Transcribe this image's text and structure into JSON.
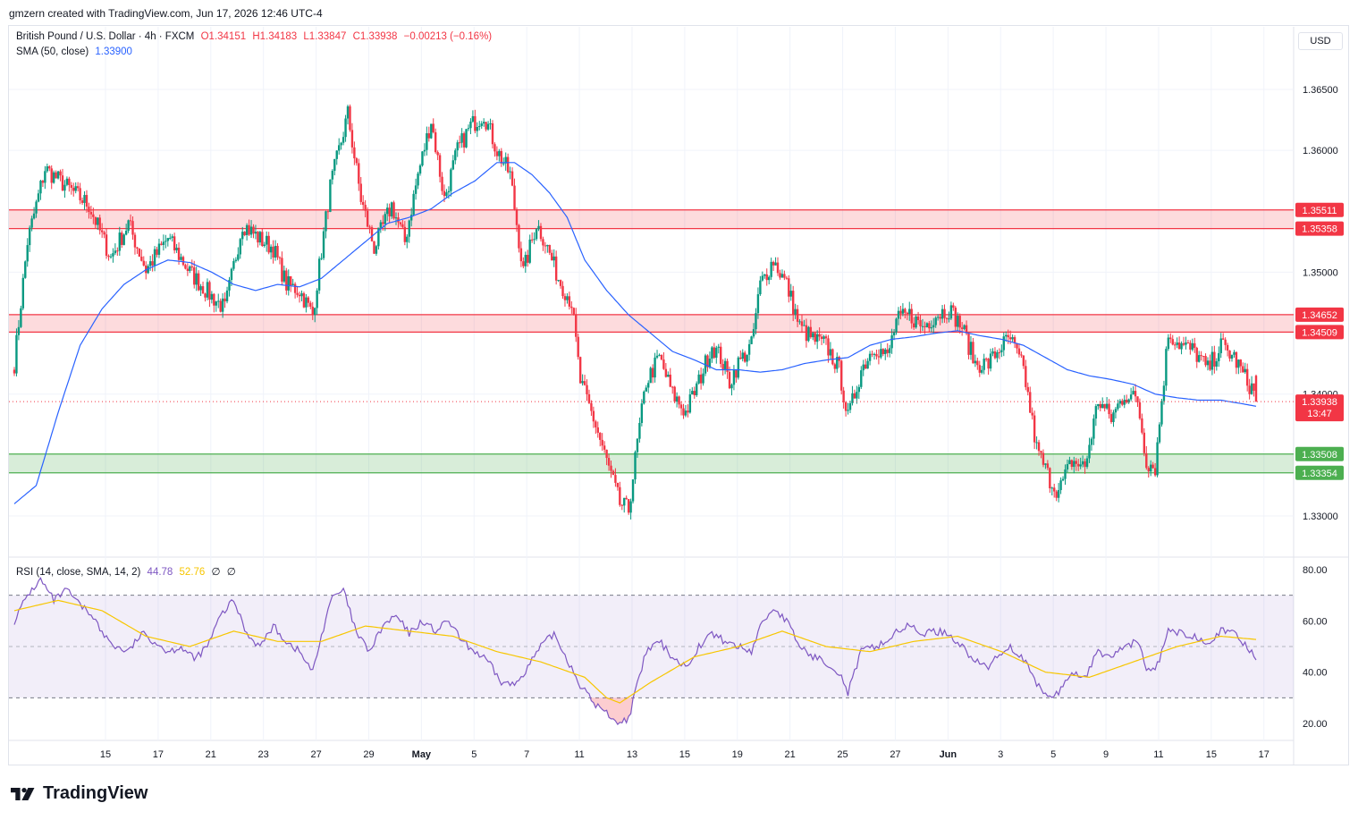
{
  "header": {
    "credit": "gmzern created with TradingView.com, Jun 17, 2026 12:46 UTC-4"
  },
  "legend": {
    "symbol": "British Pound / U.S. Dollar · 4h · FXCM",
    "open": "O1.34151",
    "high": "H1.34183",
    "low": "L1.33847",
    "close": "C1.33938",
    "change": "−0.00213 (−0.16%)",
    "sma_label": "SMA (50, close)",
    "sma_value": "1.33900",
    "rsi_label": "RSI (14, close, SMA, 14, 2)",
    "rsi_value": "44.78",
    "rsi_sma_value": "52.76",
    "rsi_extra1": "∅",
    "rsi_extra2": "∅"
  },
  "currency": "USD",
  "brand": "TradingView",
  "colors": {
    "up": "#089981",
    "down": "#f23645",
    "sma": "#2962ff",
    "rsi": "#7e57c2",
    "rsi_sma": "#f7c600",
    "resistance": "#f23645",
    "support": "#4caf50"
  },
  "chart_data": [
    {
      "type": "candlestick",
      "title": "British Pound / U.S. Dollar · 4h · FXCM",
      "ylim": [
        1.327,
        1.37
      ],
      "y_ticks": [
        "1.36500",
        "1.36000",
        "1.35000",
        "1.34000",
        "1.33000"
      ],
      "x_ticks": [
        "15",
        "17",
        "21",
        "23",
        "27",
        "29",
        "May",
        "5",
        "7",
        "11",
        "13",
        "15",
        "19",
        "21",
        "25",
        "27",
        "Jun",
        "3",
        "5",
        "9",
        "11",
        "15",
        "17"
      ],
      "path": [
        [
          0,
          1.3425
        ],
        [
          6,
          1.3525
        ],
        [
          14,
          1.3585
        ],
        [
          24,
          1.357
        ],
        [
          34,
          1.3555
        ],
        [
          44,
          1.3512
        ],
        [
          52,
          1.354
        ],
        [
          60,
          1.3502
        ],
        [
          70,
          1.3528
        ],
        [
          80,
          1.35
        ],
        [
          90,
          1.348
        ],
        [
          96,
          1.347
        ],
        [
          104,
          1.354
        ],
        [
          112,
          1.3527
        ],
        [
          118,
          1.352
        ],
        [
          124,
          1.349
        ],
        [
          130,
          1.3485
        ],
        [
          136,
          1.3465
        ],
        [
          144,
          1.357
        ],
        [
          152,
          1.363
        ],
        [
          158,
          1.356
        ],
        [
          164,
          1.352
        ],
        [
          172,
          1.3555
        ],
        [
          178,
          1.3525
        ],
        [
          184,
          1.358
        ],
        [
          190,
          1.3625
        ],
        [
          196,
          1.356
        ],
        [
          202,
          1.36
        ],
        [
          208,
          1.362
        ],
        [
          214,
          1.363
        ],
        [
          220,
          1.36
        ],
        [
          226,
          1.358
        ],
        [
          232,
          1.35
        ],
        [
          238,
          1.354
        ],
        [
          242,
          1.3525
        ],
        [
          248,
          1.3495
        ],
        [
          254,
          1.3475
        ],
        [
          258,
          1.341
        ],
        [
          264,
          1.338
        ],
        [
          270,
          1.3345
        ],
        [
          276,
          1.331
        ],
        [
          280,
          1.3305
        ],
        [
          284,
          1.336
        ],
        [
          288,
          1.341
        ],
        [
          294,
          1.343
        ],
        [
          300,
          1.34
        ],
        [
          306,
          1.3385
        ],
        [
          312,
          1.341
        ],
        [
          318,
          1.344
        ],
        [
          322,
          1.343
        ],
        [
          326,
          1.341
        ],
        [
          330,
          1.3425
        ],
        [
          336,
          1.344
        ],
        [
          340,
          1.349
        ],
        [
          346,
          1.351
        ],
        [
          352,
          1.349
        ],
        [
          358,
          1.3455
        ],
        [
          364,
          1.3445
        ],
        [
          370,
          1.344
        ],
        [
          376,
          1.342
        ],
        [
          380,
          1.338
        ],
        [
          386,
          1.342
        ],
        [
          392,
          1.344
        ],
        [
          398,
          1.343
        ],
        [
          402,
          1.346
        ],
        [
          408,
          1.3465
        ],
        [
          414,
          1.3455
        ],
        [
          420,
          1.3465
        ],
        [
          426,
          1.347
        ],
        [
          432,
          1.3455
        ],
        [
          438,
          1.3425
        ],
        [
          444,
          1.3425
        ],
        [
          450,
          1.344
        ],
        [
          454,
          1.3445
        ],
        [
          460,
          1.342
        ],
        [
          466,
          1.3355
        ],
        [
          472,
          1.333
        ],
        [
          476,
          1.332
        ],
        [
          482,
          1.3345
        ],
        [
          488,
          1.334
        ],
        [
          494,
          1.3395
        ],
        [
          500,
          1.338
        ],
        [
          506,
          1.34
        ],
        [
          512,
          1.3395
        ],
        [
          516,
          1.3345
        ],
        [
          520,
          1.334
        ],
        [
          526,
          1.345
        ],
        [
          532,
          1.344
        ],
        [
          538,
          1.3435
        ],
        [
          544,
          1.342
        ],
        [
          550,
          1.344
        ],
        [
          556,
          1.343
        ],
        [
          562,
          1.341
        ],
        [
          566,
          1.34
        ]
      ],
      "sma": [
        [
          0,
          1.331
        ],
        [
          10,
          1.3325
        ],
        [
          20,
          1.3385
        ],
        [
          30,
          1.344
        ],
        [
          40,
          1.347
        ],
        [
          50,
          1.349
        ],
        [
          60,
          1.3502
        ],
        [
          70,
          1.351
        ],
        [
          80,
          1.3508
        ],
        [
          90,
          1.35
        ],
        [
          100,
          1.349
        ],
        [
          110,
          1.3485
        ],
        [
          120,
          1.349
        ],
        [
          130,
          1.3488
        ],
        [
          140,
          1.3495
        ],
        [
          150,
          1.351
        ],
        [
          160,
          1.3525
        ],
        [
          170,
          1.354
        ],
        [
          180,
          1.3545
        ],
        [
          190,
          1.3552
        ],
        [
          200,
          1.3565
        ],
        [
          210,
          1.3575
        ],
        [
          220,
          1.359
        ],
        [
          228,
          1.359
        ],
        [
          236,
          1.358
        ],
        [
          244,
          1.3565
        ],
        [
          252,
          1.3545
        ],
        [
          260,
          1.351
        ],
        [
          270,
          1.3485
        ],
        [
          280,
          1.3465
        ],
        [
          290,
          1.345
        ],
        [
          300,
          1.3435
        ],
        [
          310,
          1.3428
        ],
        [
          320,
          1.342
        ],
        [
          330,
          1.342
        ],
        [
          340,
          1.3418
        ],
        [
          350,
          1.342
        ],
        [
          360,
          1.3425
        ],
        [
          370,
          1.3428
        ],
        [
          380,
          1.343
        ],
        [
          390,
          1.344
        ],
        [
          400,
          1.3445
        ],
        [
          410,
          1.3447
        ],
        [
          420,
          1.345
        ],
        [
          430,
          1.3452
        ],
        [
          440,
          1.3448
        ],
        [
          450,
          1.3445
        ],
        [
          460,
          1.344
        ],
        [
          470,
          1.343
        ],
        [
          480,
          1.342
        ],
        [
          490,
          1.3415
        ],
        [
          500,
          1.3412
        ],
        [
          510,
          1.3408
        ],
        [
          520,
          1.34
        ],
        [
          530,
          1.3397
        ],
        [
          540,
          1.3395
        ],
        [
          550,
          1.3395
        ],
        [
          560,
          1.3392
        ],
        [
          566,
          1.339
        ]
      ],
      "zones": [
        {
          "type": "resistance",
          "top": 1.35511,
          "bottom": 1.35358,
          "top_label": "1.35511",
          "bottom_label": "1.35358"
        },
        {
          "type": "resistance",
          "top": 1.34652,
          "bottom": 1.34509,
          "top_label": "1.34652",
          "bottom_label": "1.34509"
        },
        {
          "type": "support",
          "top": 1.33508,
          "bottom": 1.33354,
          "top_label": "1.33508",
          "bottom_label": "1.33354"
        }
      ],
      "last_price": {
        "value": 1.33938,
        "label": "1.33938",
        "countdown": "13:47"
      }
    },
    {
      "type": "line",
      "title": "RSI (14, close, SMA, 14, 2)",
      "ylim": [
        15,
        82
      ],
      "y_ticks": [
        "80.00",
        "60.00",
        "40.00",
        "20.00"
      ],
      "bands": [
        70,
        50,
        30
      ],
      "series": [
        {
          "name": "RSI",
          "values": [
            [
              0,
              60
            ],
            [
              6,
              70
            ],
            [
              12,
              76
            ],
            [
              18,
              68
            ],
            [
              24,
              72
            ],
            [
              30,
              66
            ],
            [
              36,
              62
            ],
            [
              40,
              55
            ],
            [
              46,
              50
            ],
            [
              52,
              48
            ],
            [
              58,
              55
            ],
            [
              64,
              52
            ],
            [
              70,
              48
            ],
            [
              76,
              50
            ],
            [
              82,
              45
            ],
            [
              88,
              50
            ],
            [
              94,
              62
            ],
            [
              100,
              68
            ],
            [
              106,
              55
            ],
            [
              112,
              50
            ],
            [
              118,
              58
            ],
            [
              124,
              52
            ],
            [
              130,
              48
            ],
            [
              136,
              40
            ],
            [
              144,
              68
            ],
            [
              150,
              72
            ],
            [
              156,
              55
            ],
            [
              162,
              48
            ],
            [
              168,
              58
            ],
            [
              174,
              62
            ],
            [
              180,
              55
            ],
            [
              186,
              60
            ],
            [
              192,
              56
            ],
            [
              198,
              60
            ],
            [
              204,
              52
            ],
            [
              210,
              48
            ],
            [
              216,
              44
            ],
            [
              222,
              36
            ],
            [
              228,
              35
            ],
            [
              234,
              42
            ],
            [
              240,
              50
            ],
            [
              246,
              55
            ],
            [
              252,
              45
            ],
            [
              258,
              35
            ],
            [
              264,
              28
            ],
            [
              270,
              24
            ],
            [
              276,
              20
            ],
            [
              280,
              22
            ],
            [
              284,
              35
            ],
            [
              288,
              48
            ],
            [
              294,
              52
            ],
            [
              300,
              46
            ],
            [
              306,
              42
            ],
            [
              312,
              50
            ],
            [
              318,
              55
            ],
            [
              324,
              52
            ],
            [
              330,
              50
            ],
            [
              336,
              48
            ],
            [
              340,
              58
            ],
            [
              346,
              65
            ],
            [
              352,
              60
            ],
            [
              358,
              50
            ],
            [
              364,
              46
            ],
            [
              370,
              44
            ],
            [
              376,
              40
            ],
            [
              380,
              32
            ],
            [
              386,
              48
            ],
            [
              392,
              50
            ],
            [
              398,
              52
            ],
            [
              402,
              56
            ],
            [
              408,
              58
            ],
            [
              414,
              55
            ],
            [
              420,
              56
            ],
            [
              426,
              55
            ],
            [
              432,
              50
            ],
            [
              438,
              44
            ],
            [
              444,
              42
            ],
            [
              450,
              48
            ],
            [
              454,
              50
            ],
            [
              460,
              45
            ],
            [
              466,
              35
            ],
            [
              472,
              30
            ],
            [
              476,
              32
            ],
            [
              482,
              40
            ],
            [
              488,
              38
            ],
            [
              494,
              48
            ],
            [
              500,
              46
            ],
            [
              506,
              50
            ],
            [
              512,
              52
            ],
            [
              516,
              42
            ],
            [
              520,
              40
            ],
            [
              526,
              56
            ],
            [
              532,
              55
            ],
            [
              538,
              54
            ],
            [
              544,
              52
            ],
            [
              550,
              56
            ],
            [
              556,
              55
            ],
            [
              562,
              50
            ],
            [
              566,
              45
            ]
          ]
        },
        {
          "name": "RSI-based MA",
          "values": [
            [
              0,
              64
            ],
            [
              20,
              68
            ],
            [
              40,
              64
            ],
            [
              60,
              54
            ],
            [
              80,
              50
            ],
            [
              100,
              56
            ],
            [
              120,
              52
            ],
            [
              140,
              52
            ],
            [
              160,
              58
            ],
            [
              180,
              56
            ],
            [
              200,
              54
            ],
            [
              220,
              48
            ],
            [
              240,
              44
            ],
            [
              260,
              38
            ],
            [
              270,
              30
            ],
            [
              276,
              28
            ],
            [
              290,
              36
            ],
            [
              310,
              46
            ],
            [
              330,
              50
            ],
            [
              350,
              56
            ],
            [
              370,
              50
            ],
            [
              390,
              48
            ],
            [
              410,
              52
            ],
            [
              430,
              54
            ],
            [
              450,
              48
            ],
            [
              470,
              40
            ],
            [
              490,
              38
            ],
            [
              510,
              44
            ],
            [
              530,
              50
            ],
            [
              550,
              54
            ],
            [
              566,
              52.76
            ]
          ]
        }
      ]
    }
  ]
}
